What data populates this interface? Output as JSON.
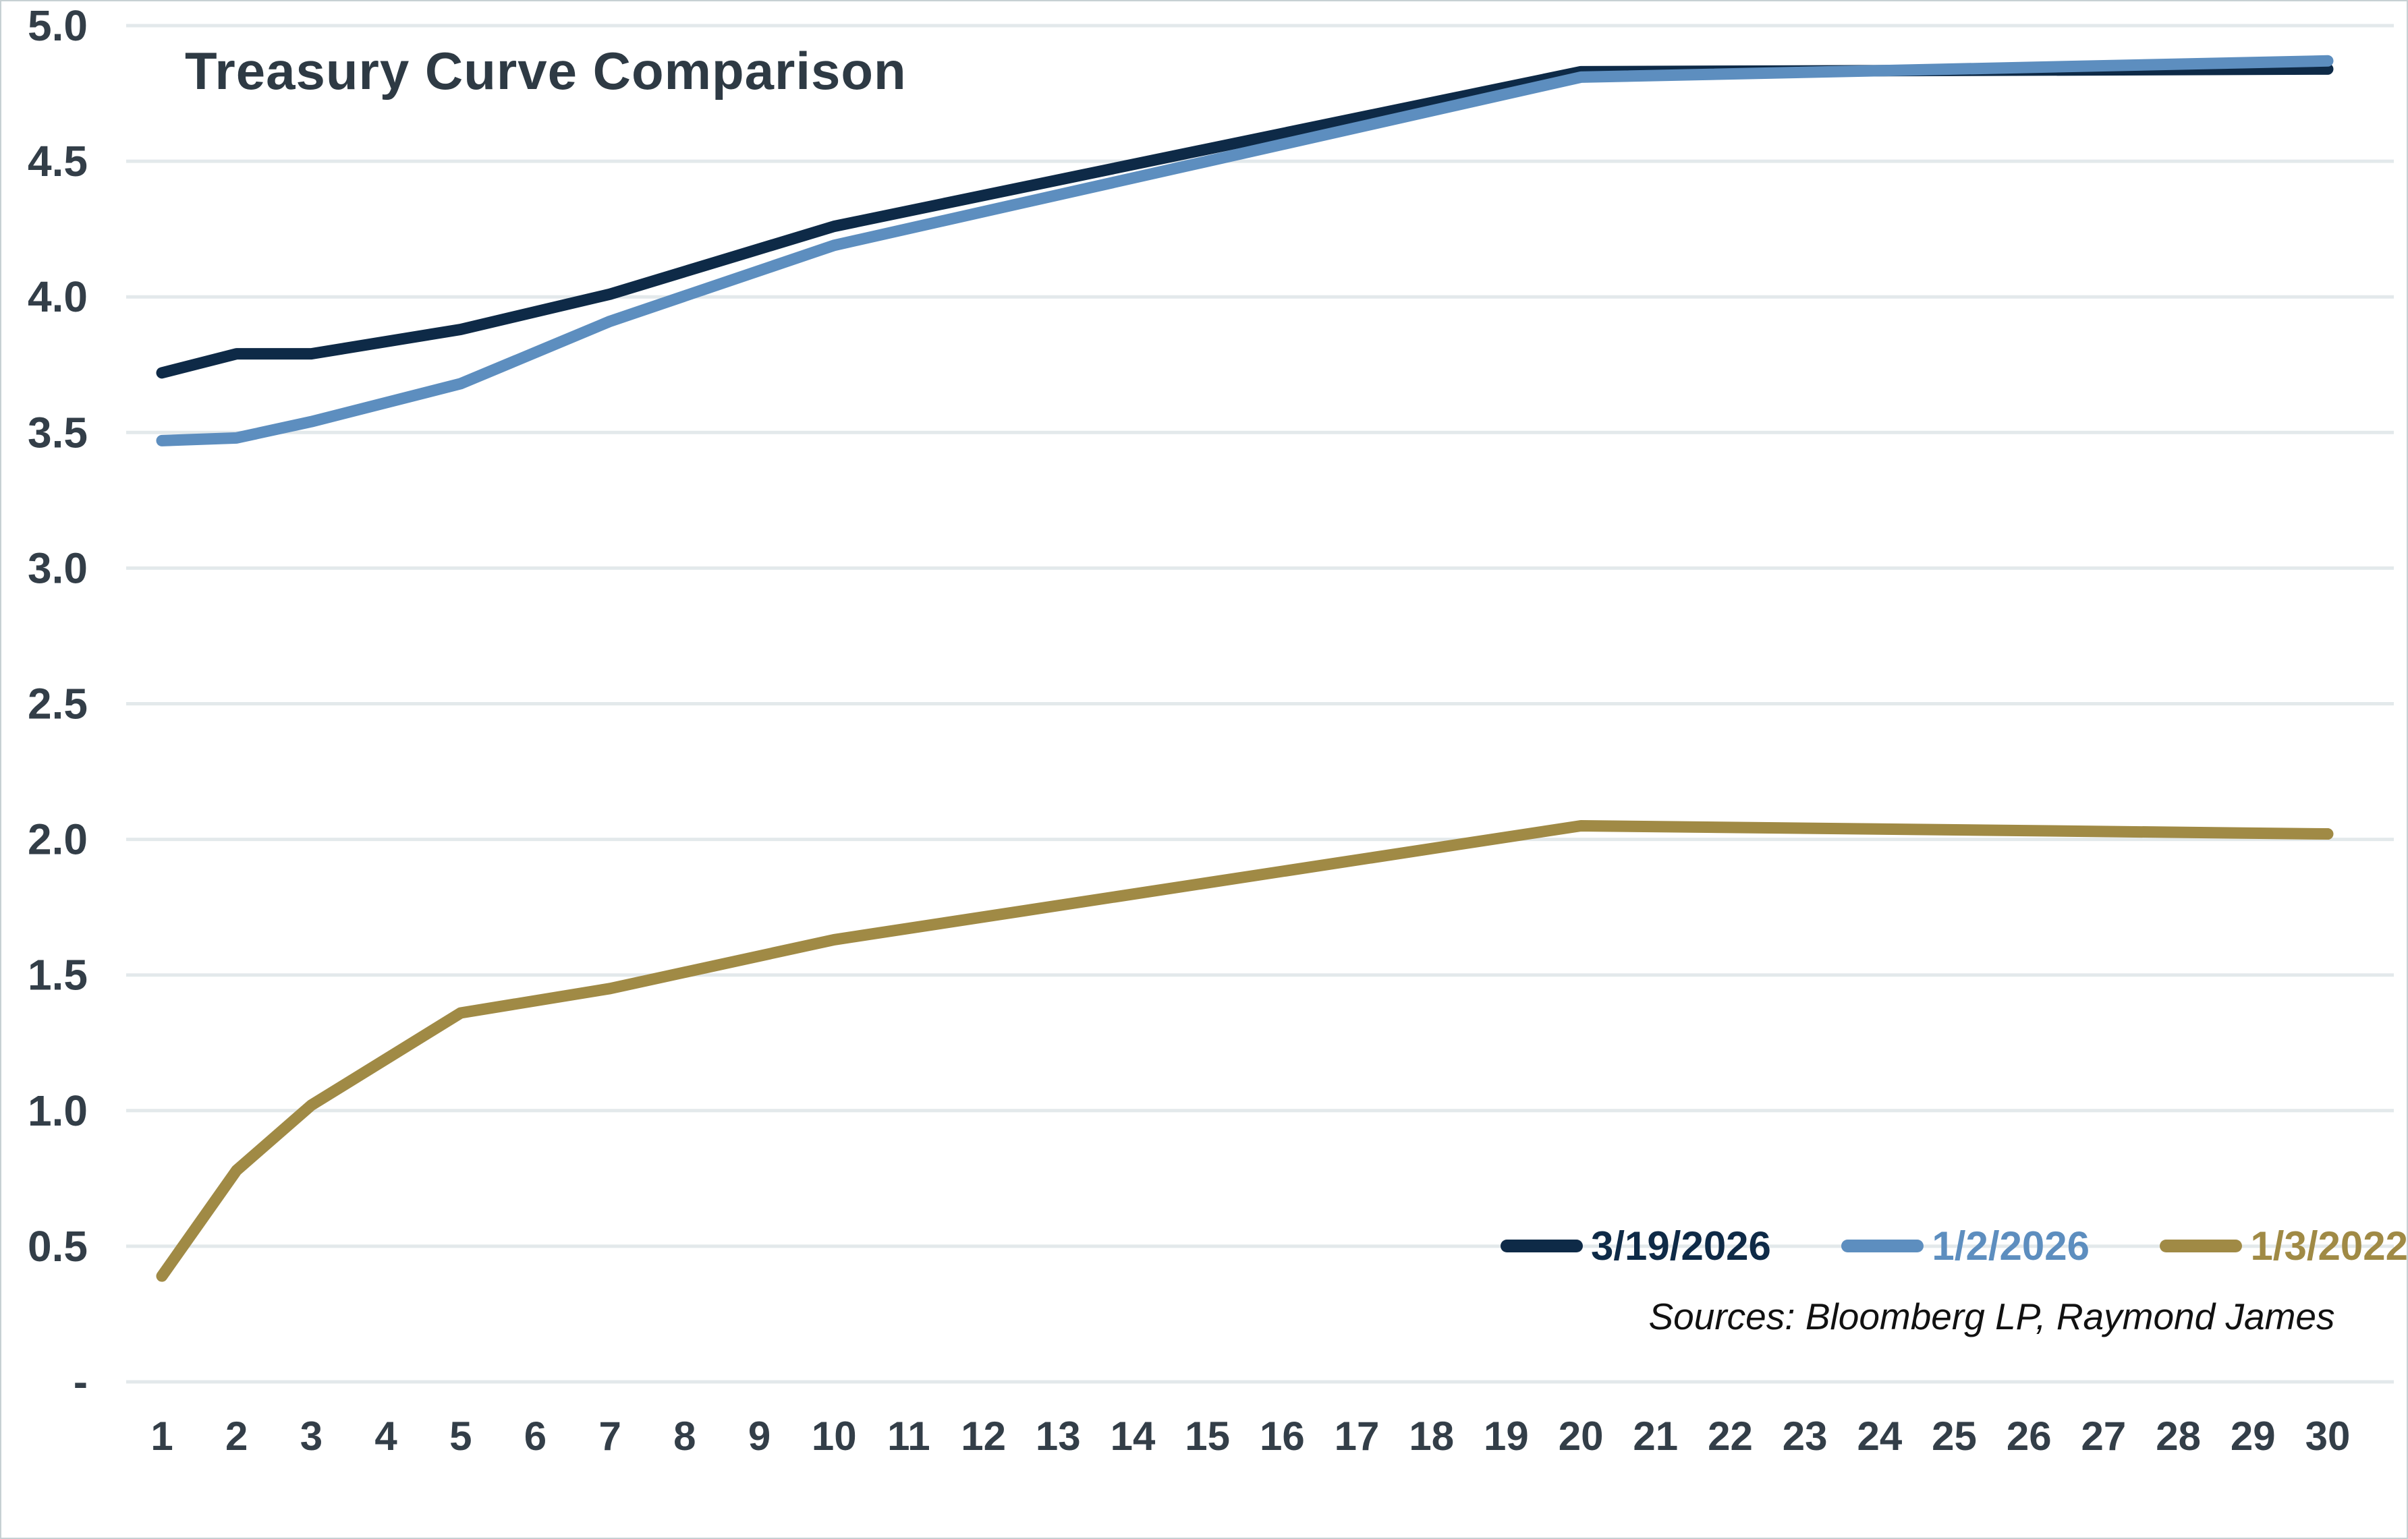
{
  "chart_data": {
    "type": "line",
    "title": "Treasury Curve Comparison",
    "xlabel": "",
    "ylabel": "",
    "x_axis": {
      "tick_start": 1,
      "tick_end": 30,
      "tick_step": 1
    },
    "y_axis": {
      "min": 0,
      "max": 5.0,
      "tick_step": 0.5,
      "tick_labels": [
        "-",
        "0.5",
        "1.0",
        "1.5",
        "2.0",
        "2.5",
        "3.0",
        "3.5",
        "4.0",
        "4.5",
        "5.0"
      ]
    },
    "grid": "horizontal",
    "legend_position": "bottom-right-inside",
    "maturities": [
      1,
      2,
      3,
      5,
      7,
      10,
      20,
      30
    ],
    "series": [
      {
        "name": "3/19/2026",
        "color": "#0e2a47",
        "values": [
          3.72,
          3.79,
          3.79,
          3.88,
          4.01,
          4.26,
          4.83,
          4.84
        ]
      },
      {
        "name": "1/2/2026",
        "color": "#5d8ebf",
        "values": [
          3.47,
          3.48,
          3.54,
          3.68,
          3.91,
          4.19,
          4.81,
          4.87
        ]
      },
      {
        "name": "1/3/2022",
        "color": "#a08a45",
        "values": [
          0.39,
          0.78,
          1.02,
          1.36,
          1.45,
          1.63,
          2.05,
          2.02
        ]
      }
    ],
    "source_note": "Sources: Bloomberg LP, Raymond James"
  },
  "colors": {
    "background": "#ffffff",
    "gridline": "#e3e9eb",
    "axis_text": "#333e48",
    "title_text": "#2e3a44",
    "border": "#c7d0d3"
  }
}
